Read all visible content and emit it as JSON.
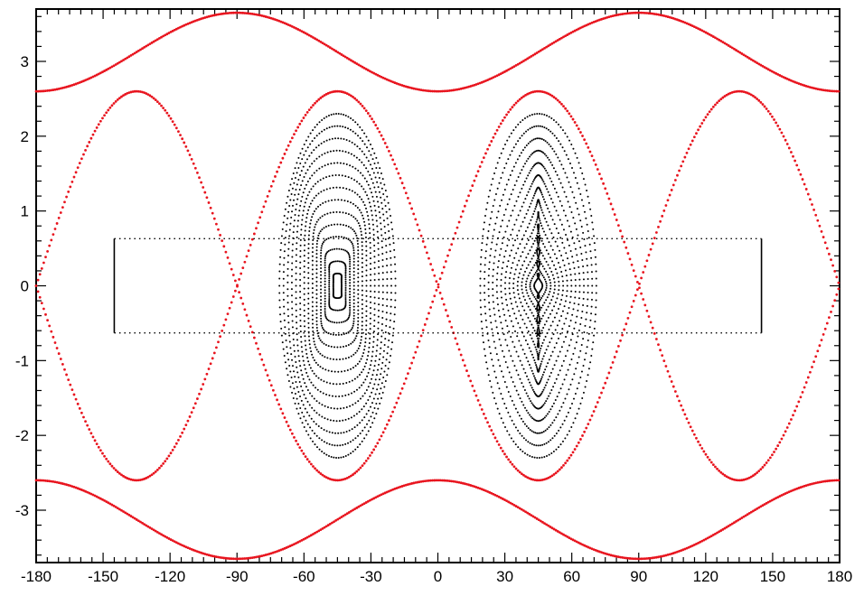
{
  "chart_data": {
    "type": "scatter",
    "title": "",
    "xlabel": "",
    "ylabel": "",
    "xlim": [
      -180,
      180
    ],
    "ylim": [
      -3.7,
      3.7
    ],
    "grid": false,
    "legend": "none",
    "x_ticks": [
      -180,
      -150,
      -120,
      -90,
      -60,
      -30,
      0,
      30,
      60,
      90,
      120,
      150,
      180
    ],
    "x_tick_labels": [
      "-180",
      "-150",
      "-120",
      "-90",
      "-60",
      "-30",
      "0",
      "30",
      "60",
      "90",
      "120",
      "150",
      "180"
    ],
    "y_ticks": [
      -3,
      -2,
      -1,
      0,
      1,
      2,
      3
    ],
    "y_tick_labels": [
      "-3",
      "-2",
      "-1",
      "0",
      "1",
      "2",
      "3"
    ],
    "colors": {
      "separatrix": "#e8141e",
      "orbits": "#000000",
      "box": "#000000"
    },
    "series": [
      {
        "kind": "separatrix",
        "period": 180,
        "upper_max": 3.65,
        "upper_min": 2.6,
        "inner_max": 2.6,
        "center_x": [
          -135,
          -45,
          45,
          135
        ]
      },
      {
        "kind": "island_orbits",
        "centers_x": [
          -45,
          45
        ],
        "half_width_x": 26,
        "half_height_y": 2.3,
        "orbit_count": 14
      },
      {
        "kind": "box",
        "x": [
          -145,
          145
        ],
        "y": [
          -0.63,
          0.63
        ]
      }
    ]
  }
}
